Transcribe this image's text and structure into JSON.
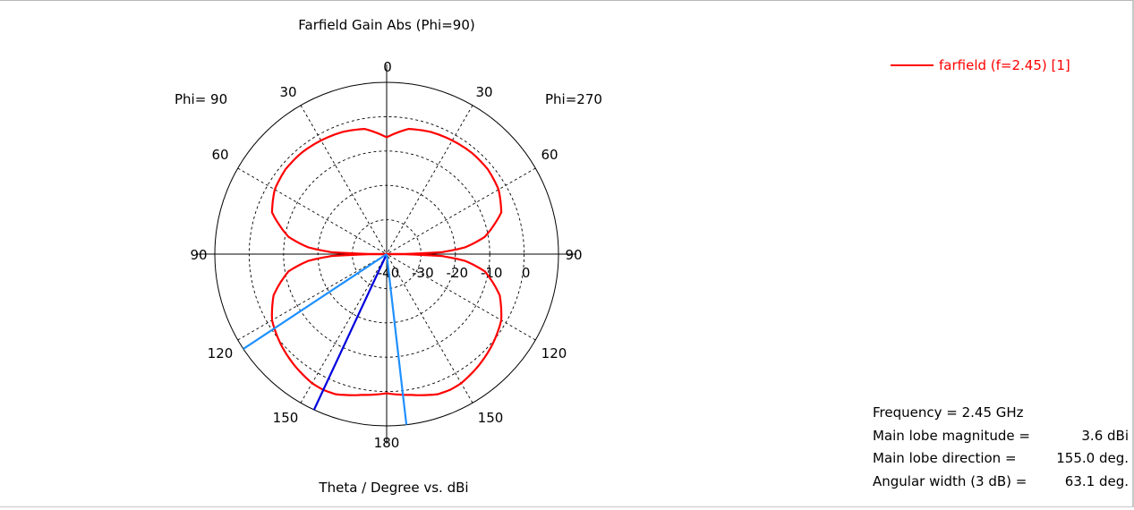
{
  "chart_data": {
    "type": "polar-line",
    "title": "Farfield Gain Abs (Phi=90)",
    "xlabel": "Theta / Degree vs. dBi",
    "left_label": "Phi= 90",
    "right_label": "Phi=270",
    "radial_ticks": [
      "-40",
      "-30",
      "-20",
      "-10",
      "0"
    ],
    "radial_range": [
      -40,
      10
    ],
    "angle_labels": {
      "top": "0",
      "bottom": "180",
      "left_30": "30",
      "right_30": "30",
      "left_60": "60",
      "right_60": "60",
      "left_90": "90",
      "right_90": "90",
      "left_120": "120",
      "right_120": "120",
      "left_150": "150",
      "right_150": "150"
    },
    "grid": true,
    "legend_position": "top-right",
    "series": [
      {
        "name": "farfield (f=2.45) [1]",
        "color": "#ff0000",
        "theta_deg": [
          0,
          10,
          20,
          30,
          40,
          50,
          60,
          70,
          80,
          85,
          88,
          90,
          92,
          95,
          100,
          110,
          120,
          130,
          140,
          150,
          155,
          160,
          170,
          180
        ],
        "gain_dbi": [
          -6.0,
          -3.0,
          -2.2,
          -1.8,
          -1.5,
          -1.6,
          -2.4,
          -4.5,
          -11.0,
          -17.0,
          -24.0,
          -40.0,
          -24.0,
          -17.0,
          -11.0,
          -5.0,
          -1.5,
          0.4,
          2.0,
          3.4,
          3.6,
          3.4,
          1.6,
          0.5
        ]
      }
    ],
    "markers": [
      {
        "name": "main-lobe-direction",
        "theta_deg": 155.0,
        "color": "#0000dd"
      },
      {
        "name": "3db-beamwidth-edge-1",
        "theta_deg": 123.5,
        "color": "#1e90ff"
      },
      {
        "name": "3db-beamwidth-edge-2",
        "theta_deg": 186.6,
        "color": "#1e90ff"
      }
    ]
  },
  "legend": {
    "label": "farfield (f=2.45) [1]",
    "color": "#ff0000"
  },
  "info": [
    {
      "label": "Frequency = 2.45 GHz",
      "value": ""
    },
    {
      "label": "Main lobe magnitude =",
      "value": "3.6 dBi"
    },
    {
      "label": "Main lobe direction =",
      "value": "155.0 deg."
    },
    {
      "label": "Angular width (3 dB) =",
      "value": "63.1 deg."
    }
  ]
}
